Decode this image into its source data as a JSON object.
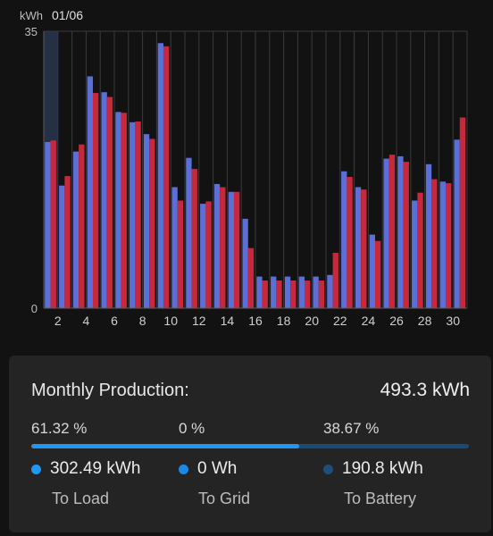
{
  "chart_data": {
    "type": "bar",
    "unit_label": "kWh",
    "date_label": "01/06",
    "ylim": [
      0,
      35
    ],
    "y_tick_labels": [
      "0",
      "35"
    ],
    "x": [
      1,
      2,
      3,
      4,
      5,
      6,
      7,
      8,
      9,
      10,
      11,
      12,
      13,
      14,
      15,
      16,
      17,
      18,
      19,
      20,
      21,
      22,
      23,
      24,
      25,
      26,
      27,
      28,
      29,
      30
    ],
    "x_tick_labels": [
      "2",
      "4",
      "6",
      "8",
      "10",
      "12",
      "14",
      "16",
      "18",
      "20",
      "22",
      "24",
      "26",
      "28",
      "30"
    ],
    "highlighted_day": 1,
    "series": [
      {
        "color": "#5b6fd6",
        "values": [
          21.0,
          15.5,
          19.8,
          29.3,
          27.3,
          24.8,
          23.5,
          22.0,
          33.5,
          15.3,
          19.0,
          13.2,
          15.7,
          14.7,
          11.3,
          4.0,
          4.0,
          4.0,
          4.0,
          4.0,
          4.2,
          17.3,
          15.3,
          9.3,
          18.9,
          19.2,
          13.6,
          18.2,
          16.0,
          21.3
        ]
      },
      {
        "color": "#c8283b",
        "values": [
          21.2,
          16.7,
          20.7,
          27.2,
          26.7,
          24.7,
          23.6,
          21.4,
          33.1,
          13.6,
          17.6,
          13.5,
          15.3,
          14.7,
          7.6,
          3.5,
          3.5,
          3.5,
          3.5,
          3.5,
          7.0,
          16.6,
          15.0,
          8.5,
          19.4,
          18.5,
          14.6,
          16.3,
          15.8,
          24.1
        ]
      }
    ]
  },
  "summary": {
    "title": "Monthly Production:",
    "total": "493.3 kWh",
    "load_pct": "61.32 %",
    "grid_pct": "0 %",
    "battery_pct": "38.67 %",
    "load_fraction": 0.6132,
    "load_value": "302.49 kWh",
    "grid_value": "0 Wh",
    "battery_value": "190.8 kWh",
    "load_label": "To Load",
    "grid_label": "To Grid",
    "battery_label": "To Battery",
    "load_color": "#2196f3",
    "grid_color": "#1e88e5",
    "battery_color": "#1f4e79"
  }
}
